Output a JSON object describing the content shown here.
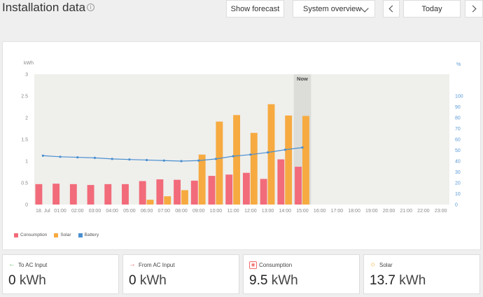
{
  "header": {
    "title": "Installation data",
    "info_icon": "info-icon",
    "show_forecast_label": "Show forecast",
    "system_overview_label": "System overview",
    "today_label": "Today"
  },
  "chart_data": {
    "type": "bar",
    "ylabel_left": "kWh",
    "ylabel_right": "%",
    "ylim_left": [
      0,
      3
    ],
    "yticks_left": [
      "0",
      "0.5",
      "1",
      "1.5",
      "2",
      "2.5",
      "3"
    ],
    "ylim_right": [
      0,
      120
    ],
    "yticks_right": [
      "0",
      "10",
      "20",
      "30",
      "40",
      "50",
      "60",
      "70",
      "80",
      "90",
      "100"
    ],
    "categories": [
      "18. Jul",
      "01:00",
      "02:00",
      "03:00",
      "04:00",
      "05:00",
      "06:00",
      "07:00",
      "08:00",
      "09:00",
      "10:00",
      "11:00",
      "12:00",
      "13:00",
      "14:00",
      "15:00",
      "16:00",
      "17:00",
      "18:00",
      "19:00",
      "20:00",
      "21:00",
      "22:00",
      "23:00"
    ],
    "now_label": "Now",
    "now_index": 15,
    "series": [
      {
        "name": "Consumption",
        "color": "#f26b7a",
        "values": [
          0.47,
          0.48,
          0.47,
          0.45,
          0.47,
          0.47,
          0.54,
          0.58,
          0.57,
          0.55,
          0.66,
          0.69,
          0.73,
          0.59,
          1.04,
          0.87,
          null,
          null,
          null,
          null,
          null,
          null,
          null,
          null
        ]
      },
      {
        "name": "Solar",
        "color": "#f6aa40",
        "values": [
          0,
          0,
          0,
          0,
          0,
          0,
          0.11,
          0.19,
          0.33,
          1.15,
          1.91,
          2.06,
          1.65,
          2.31,
          2.05,
          2.04,
          null,
          null,
          null,
          null,
          null,
          null,
          null,
          null
        ]
      },
      {
        "name": "Battery",
        "color": "#4a8fd0",
        "values": [
          45,
          44,
          43.5,
          43,
          42,
          41.5,
          41,
          40.5,
          40,
          40.5,
          42,
          44.5,
          46,
          48,
          50.5,
          52.5,
          null,
          null,
          null,
          null,
          null,
          null,
          null,
          null
        ]
      }
    ]
  },
  "stats": [
    {
      "label": "To AC Input",
      "value": "0",
      "unit": "kWh",
      "icon": "arrow-left-icon",
      "color": "#6cbf6c"
    },
    {
      "label": "From AC Input",
      "value": "0",
      "unit": "kWh",
      "icon": "arrow-right-icon",
      "color": "#f26b6b"
    },
    {
      "label": "Consumption",
      "value": "9.5",
      "unit": "kWh",
      "icon": "consumption-icon",
      "color": "#f26b6b"
    },
    {
      "label": "Solar",
      "value": "13.7",
      "unit": "kWh",
      "icon": "sun-icon",
      "color": "#f6aa40"
    }
  ]
}
